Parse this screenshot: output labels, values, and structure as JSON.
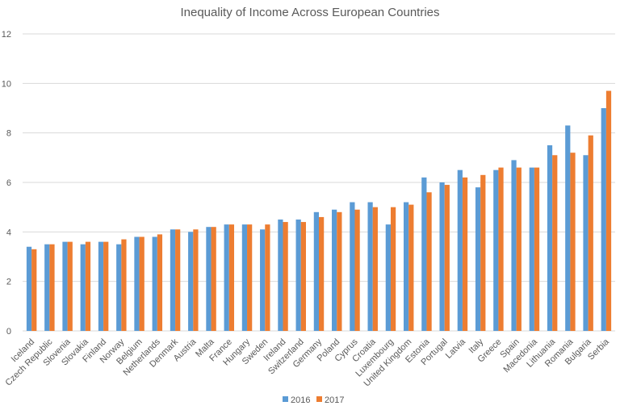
{
  "chart_data": {
    "type": "bar",
    "title": "Inequality of Income Across European Countries",
    "categories": [
      "Iceland",
      "Czech Republic",
      "Slovenia",
      "Slovakia",
      "Finland",
      "Norway",
      "Belgium",
      "Netherlands",
      "Denmark",
      "Austria",
      "Malta",
      "France",
      "Hungary",
      "Sweden",
      "Ireland",
      "Switzerland",
      "Germany",
      "Poland",
      "Cyprus",
      "Croatia",
      "Luxembourg",
      "United Kingdom",
      "Estonia",
      "Portugal",
      "Latvia",
      "Italy",
      "Greece",
      "Spain",
      "Macedonia",
      "Lithuania",
      "Romania",
      "Bulgaria",
      "Serbia"
    ],
    "series": [
      {
        "name": "2016",
        "color": "#5b9bd5",
        "values": [
          3.4,
          3.5,
          3.6,
          3.5,
          3.6,
          3.5,
          3.8,
          3.8,
          4.1,
          4.0,
          4.2,
          4.3,
          4.3,
          4.1,
          4.5,
          4.5,
          4.8,
          4.9,
          5.2,
          5.2,
          4.3,
          5.2,
          6.2,
          6.0,
          6.5,
          5.8,
          6.5,
          6.9,
          6.6,
          7.5,
          8.3,
          7.1,
          9.0
        ]
      },
      {
        "name": "2017",
        "color": "#ed7d31",
        "values": [
          3.3,
          3.5,
          3.6,
          3.6,
          3.6,
          3.7,
          3.8,
          3.9,
          4.1,
          4.1,
          4.2,
          4.3,
          4.3,
          4.3,
          4.4,
          4.4,
          4.6,
          4.8,
          4.9,
          5.0,
          5.0,
          5.1,
          5.6,
          5.9,
          6.2,
          6.3,
          6.6,
          6.6,
          6.6,
          7.1,
          7.2,
          7.9,
          9.7
        ]
      }
    ],
    "ylim": [
      0,
      12
    ],
    "yticks": [
      0,
      2,
      4,
      6,
      8,
      10,
      12
    ],
    "grid": true,
    "legend": "bottom"
  }
}
